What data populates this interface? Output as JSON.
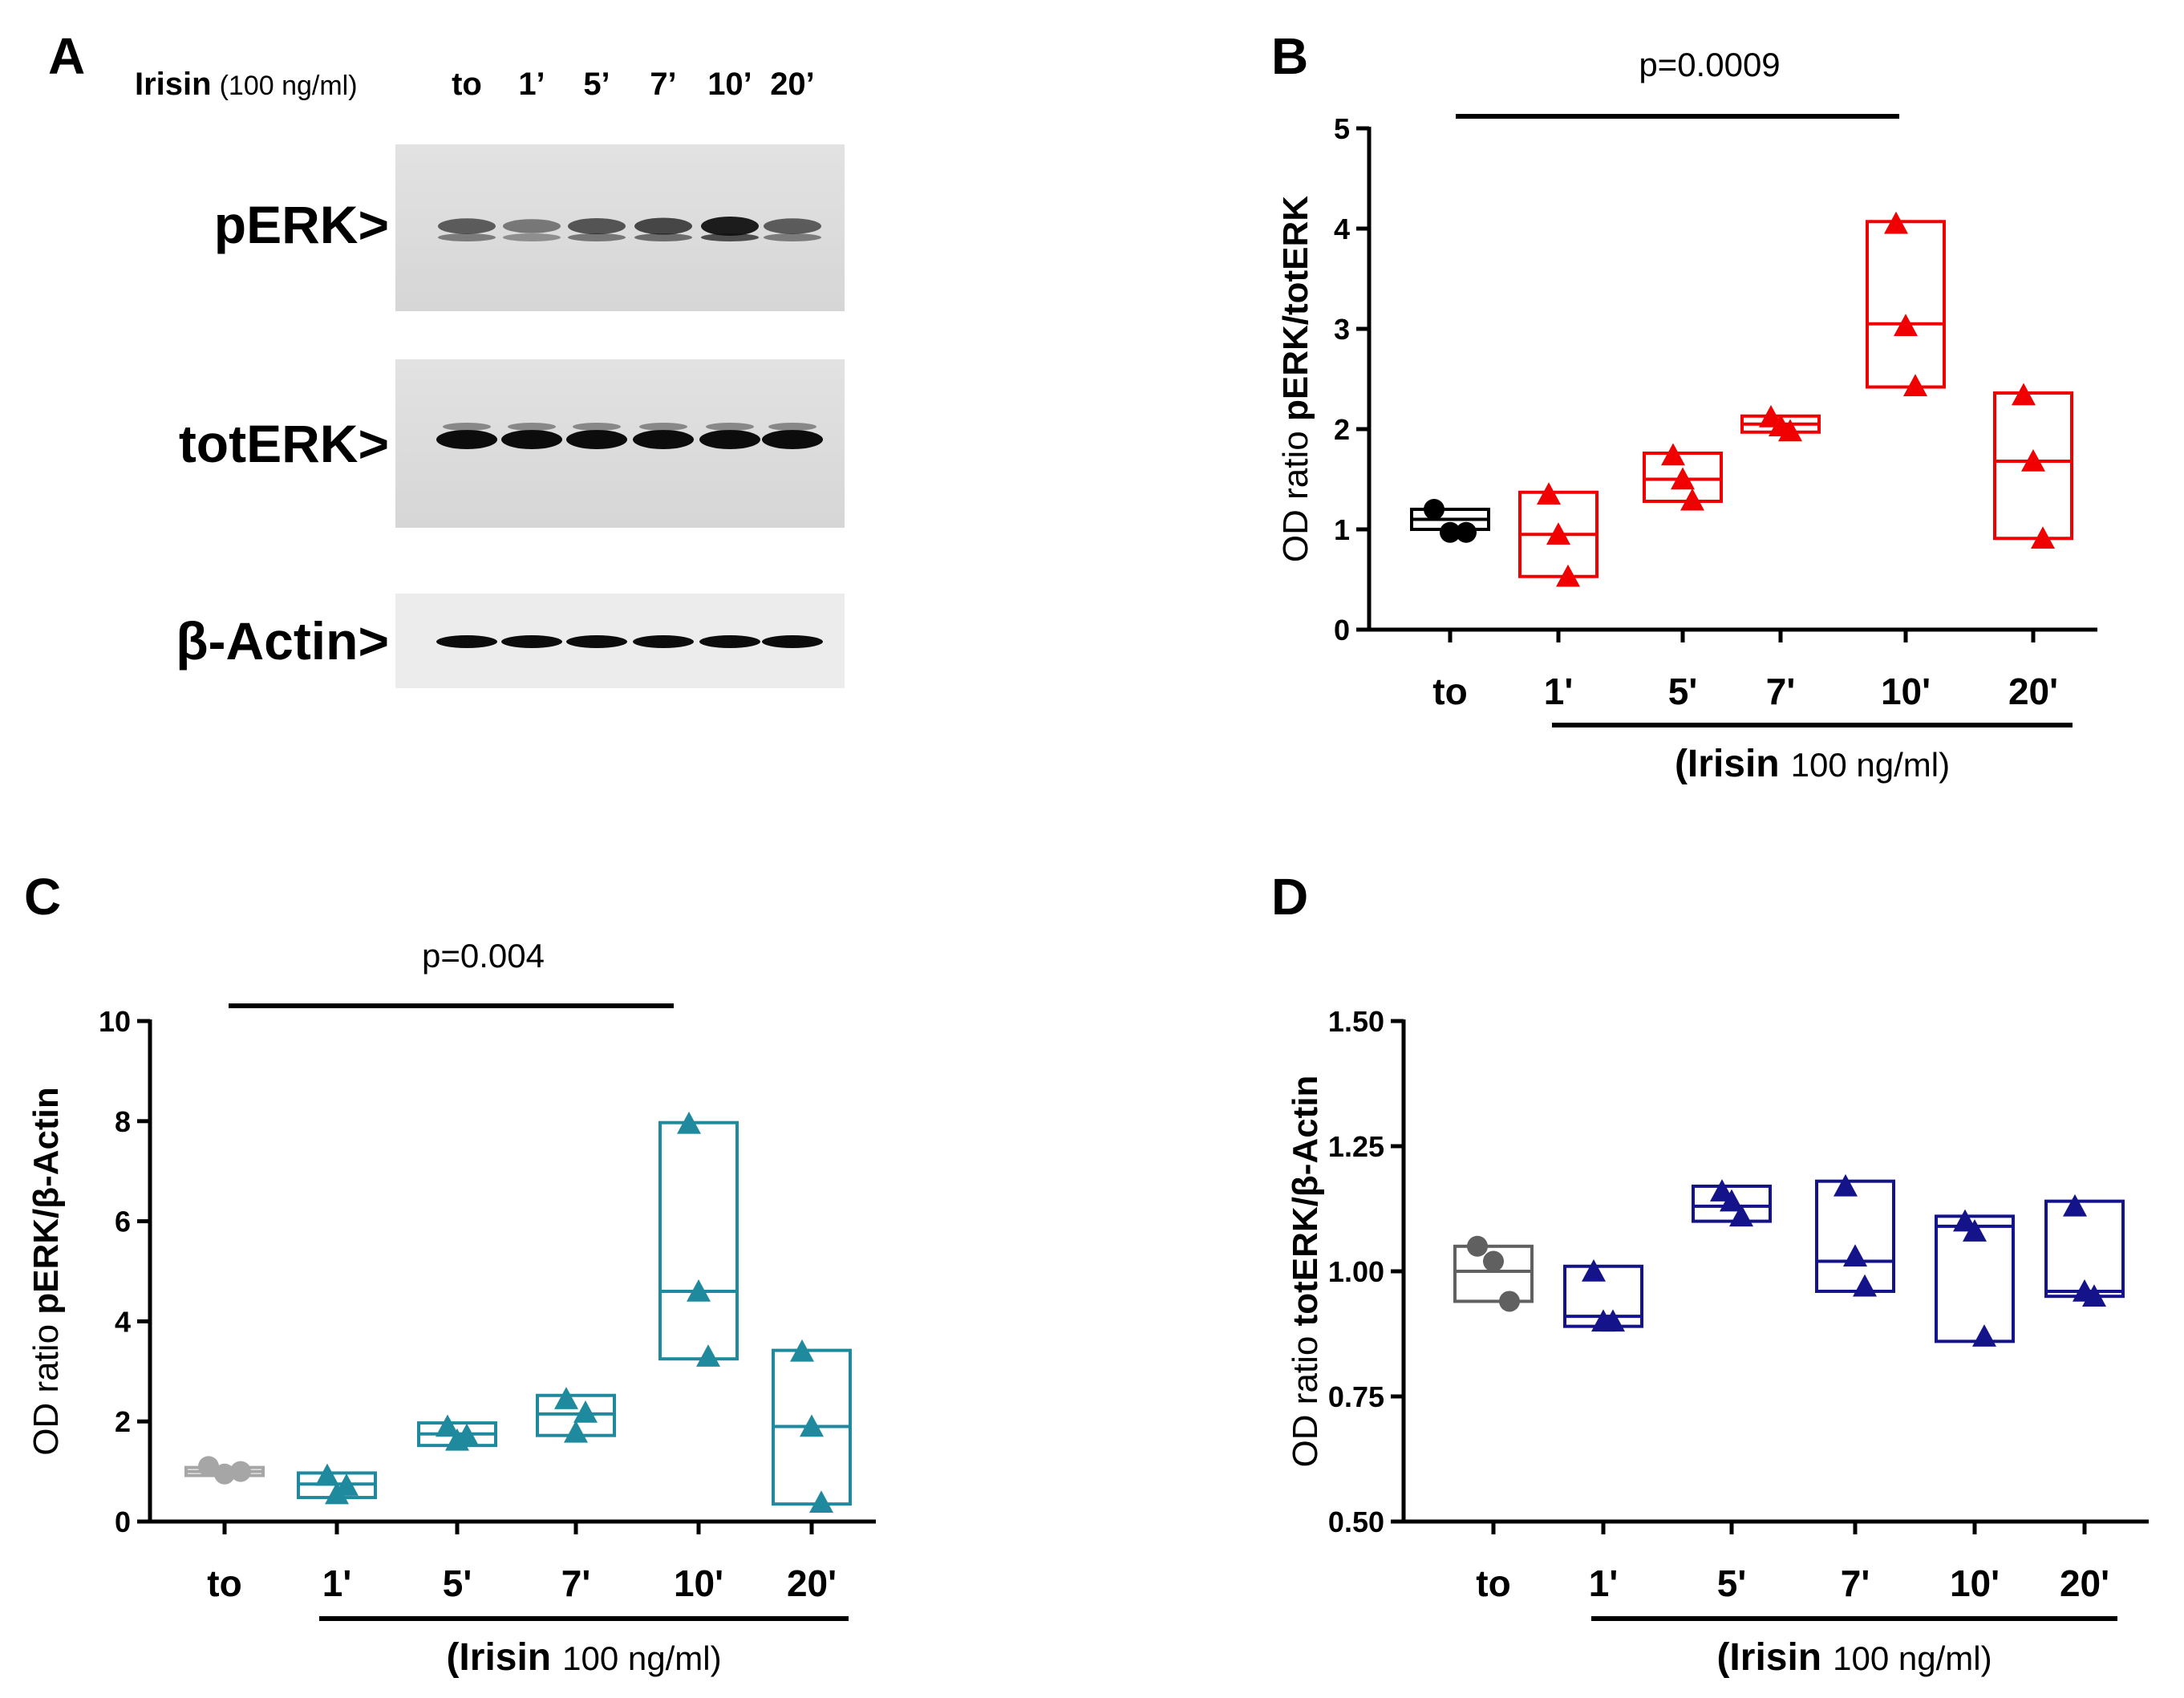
{
  "colors": {
    "black": "#000000",
    "red": "#f00000",
    "teal": "#1f8a9e",
    "navy": "#14138a",
    "gray_light": "#a6a6a6",
    "gray_dark": "#606060"
  },
  "panel_a": {
    "letter": "A",
    "header_bold": "Irisin",
    "header_dose": "(100 ng/ml)",
    "lanes": [
      "to",
      "1’",
      "5’",
      "7’",
      "10’",
      "20’"
    ],
    "blots": [
      {
        "label": "pERK>"
      },
      {
        "label": "totERK>"
      },
      {
        "label": "β-Actin>"
      }
    ]
  },
  "chart_data": [
    {
      "panel": "B",
      "type": "box-scatter",
      "categories": [
        "to",
        "1'",
        "5'",
        "7'",
        "10'",
        "20'"
      ],
      "ylim": [
        0,
        5
      ],
      "yticks": [
        "0",
        "1",
        "2",
        "3",
        "4",
        "5"
      ],
      "ylabel_prefix": "OD ratio",
      "ylabel_main": "pERK/totERK",
      "xgroup_bold": "(Irisin",
      "xgroup_normal": "100 ng/ml)",
      "significance": {
        "text": "p=0.0009",
        "from": "to",
        "to": "10'"
      },
      "groups": [
        {
          "color": "#000000",
          "marker": "circle",
          "box": [
            1.0,
            1.1,
            1.2
          ],
          "points": [
            1.2,
            0.97,
            0.97
          ]
        },
        {
          "color": "#f00000",
          "marker": "triangle",
          "box": [
            0.53,
            0.95,
            1.37
          ],
          "points": [
            1.35,
            0.95,
            0.53
          ]
        },
        {
          "color": "#f00000",
          "marker": "triangle",
          "box": [
            1.28,
            1.5,
            1.76
          ],
          "points": [
            1.74,
            1.5,
            1.29
          ]
        },
        {
          "color": "#f00000",
          "marker": "triangle",
          "box": [
            1.97,
            2.05,
            2.13
          ],
          "points": [
            2.12,
            2.03,
            1.98
          ]
        },
        {
          "color": "#f00000",
          "marker": "triangle",
          "box": [
            2.42,
            3.05,
            4.07
          ],
          "points": [
            4.05,
            3.03,
            2.43
          ]
        },
        {
          "color": "#f00000",
          "marker": "triangle",
          "box": [
            0.91,
            1.68,
            2.36
          ],
          "points": [
            2.34,
            1.68,
            0.91
          ]
        }
      ]
    },
    {
      "panel": "C",
      "type": "box-scatter",
      "categories": [
        "to",
        "1'",
        "5'",
        "7'",
        "10'",
        "20'"
      ],
      "ylim": [
        0,
        10
      ],
      "yticks": [
        "0",
        "2",
        "4",
        "6",
        "8",
        "10"
      ],
      "ylabel_prefix": "OD ratio",
      "ylabel_main": "pERK/β-Actin",
      "xgroup_bold": "(Irisin",
      "xgroup_normal": "100 ng/ml)",
      "significance": {
        "text": "p=0.004",
        "from": "to",
        "to": "10'"
      },
      "groups": [
        {
          "color": "#a6a6a6",
          "marker": "circle",
          "box": [
            0.92,
            1.0,
            1.08
          ],
          "points": [
            1.1,
            0.95,
            1.0
          ]
        },
        {
          "color": "#1f8a9e",
          "marker": "triangle",
          "box": [
            0.48,
            0.75,
            0.97
          ],
          "points": [
            0.92,
            0.55,
            0.72
          ]
        },
        {
          "color": "#1f8a9e",
          "marker": "triangle",
          "box": [
            1.52,
            1.75,
            1.97
          ],
          "points": [
            1.9,
            1.62,
            1.72
          ]
        },
        {
          "color": "#1f8a9e",
          "marker": "triangle",
          "box": [
            1.72,
            2.15,
            2.52
          ],
          "points": [
            2.45,
            1.78,
            2.18
          ]
        },
        {
          "color": "#1f8a9e",
          "marker": "triangle",
          "box": [
            3.25,
            4.6,
            7.97
          ],
          "points": [
            7.95,
            4.6,
            3.3
          ]
        },
        {
          "color": "#1f8a9e",
          "marker": "triangle",
          "box": [
            0.35,
            1.9,
            3.42
          ],
          "points": [
            3.4,
            1.9,
            0.38
          ]
        }
      ]
    },
    {
      "panel": "D",
      "type": "box-scatter",
      "categories": [
        "to",
        "1'",
        "5'",
        "7'",
        "10'",
        "20'"
      ],
      "ylim": [
        0.5,
        1.5
      ],
      "yticks": [
        "0.50",
        "0.75",
        "1.00",
        "1.25",
        "1.50"
      ],
      "ylabel_prefix": "OD ratio",
      "ylabel_main": "totERK/β-Actin",
      "xgroup_bold": "(Irisin",
      "xgroup_normal": "100 ng/ml)",
      "significance": null,
      "groups": [
        {
          "color": "#606060",
          "marker": "circle",
          "box": [
            0.94,
            1.0,
            1.05
          ],
          "points": [
            1.05,
            1.02,
            0.94
          ]
        },
        {
          "color": "#14138a",
          "marker": "triangle",
          "box": [
            0.89,
            0.91,
            1.01
          ],
          "points": [
            1.0,
            0.9,
            0.9
          ]
        },
        {
          "color": "#14138a",
          "marker": "triangle",
          "box": [
            1.1,
            1.13,
            1.17
          ],
          "points": [
            1.16,
            1.14,
            1.11
          ]
        },
        {
          "color": "#14138a",
          "marker": "triangle",
          "box": [
            0.96,
            1.02,
            1.18
          ],
          "points": [
            1.17,
            1.03,
            0.97
          ]
        },
        {
          "color": "#14138a",
          "marker": "triangle",
          "box": [
            0.86,
            1.09,
            1.11
          ],
          "points": [
            1.1,
            1.08,
            0.87
          ]
        },
        {
          "color": "#14138a",
          "marker": "triangle",
          "box": [
            0.95,
            0.96,
            1.14
          ],
          "points": [
            1.13,
            0.96,
            0.95
          ]
        }
      ]
    }
  ]
}
